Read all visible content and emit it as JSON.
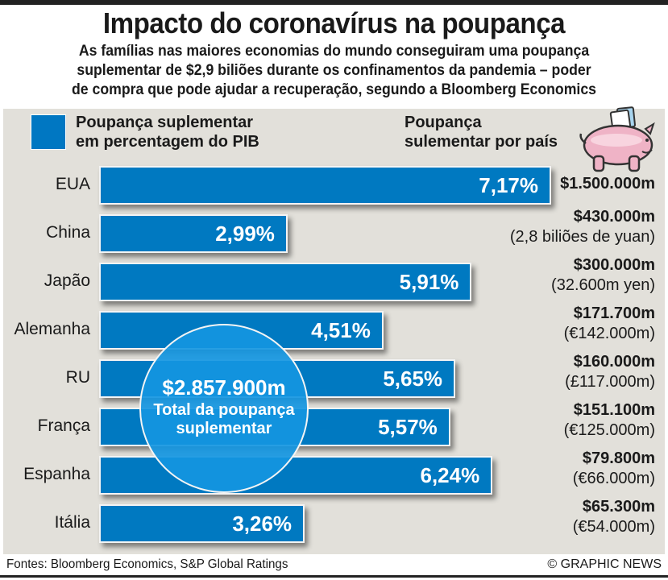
{
  "title": "Impacto do coronavírus na poupança",
  "subtitle": [
    "As famílias nas maiores economias do mundo conseguiram uma poupança",
    "suplementar de $2,9 biliões durante os confinamentos da pandemia – poder",
    "de compra que pode ajudar a recuperação, segundo a Bloomberg Economics"
  ],
  "legend": {
    "line1": "Poupança suplementar",
    "line2": "em percentagem do PIB",
    "color": "#0079c1"
  },
  "right_header": {
    "line1": "Poupança",
    "line2": "sulementar por país",
    "icon": "piggy-bank-icon"
  },
  "total": {
    "value": "$2.857.900m",
    "label1": "Total da poupança",
    "label2": "suplementar"
  },
  "footer": {
    "source": "Fontes: Bloomberg Economics, S&P Global Ratings",
    "credit": "© GRAPHIC NEWS"
  },
  "chart_data": {
    "type": "bar",
    "orientation": "horizontal",
    "title": "Impacto do coronavírus na poupança",
    "xlabel": "Poupança suplementar em percentagem do PIB",
    "ylabel": "",
    "categories": [
      "EUA",
      "China",
      "Japão",
      "Alemanha",
      "RU",
      "França",
      "Espanha",
      "Itália"
    ],
    "values": [
      7.17,
      2.99,
      5.91,
      4.51,
      5.65,
      5.57,
      6.24,
      3.26
    ],
    "value_labels": [
      "7,17%",
      "2,99%",
      "5,91%",
      "4,51%",
      "5,65%",
      "5,57%",
      "6,24%",
      "3,26%"
    ],
    "savings_usd": [
      "$1.500.000m",
      "$430.000m",
      "$300.000m",
      "$171.700m",
      "$160.000m",
      "$151.100m",
      "$79.800m",
      "$65.300m"
    ],
    "savings_local": [
      "",
      "(2,8 biliões de yuan)",
      "(32.600m yen)",
      "(€142.000m)",
      "(£117.000m)",
      "(€125.000m)",
      "(€66.000m)",
      "(€54.000m)"
    ],
    "xlim": [
      0,
      7.17
    ],
    "grid": false,
    "legend_position": "top-left"
  }
}
